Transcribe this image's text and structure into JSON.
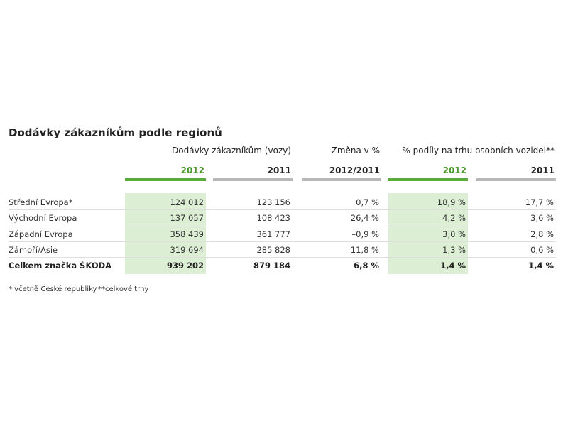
{
  "title": "Dodávky zákazníkům podle regionů",
  "table": {
    "group_headers": [
      "Dodávky zákazníkům (vozy)",
      "Změna v %",
      "% podíly na trhu osobních vozidel**"
    ],
    "columns": [
      "2012",
      "2011",
      "2012/2011",
      "2012",
      "2011"
    ],
    "rows": [
      [
        "Střední Evropa*",
        "124 012",
        "123 156",
        "0,7 %",
        "18,9 %",
        "17,7 %"
      ],
      [
        "Východní Evropa",
        "137 057",
        "108 423",
        "26,4 %",
        "4,2 %",
        "3,6 %"
      ],
      [
        "Západní Evropa",
        "358 439",
        "361 777",
        "–0,9 %",
        "3,0 %",
        "2,8 %"
      ],
      [
        "Zámoří/Asie",
        "319 694",
        "285 828",
        "11,8 %",
        "1,3 %",
        "0,6 %"
      ],
      [
        "Celkem značka ŠKODA",
        "939 202",
        "879 184",
        "6,8 %",
        "1,4 %",
        "1,4 %"
      ]
    ]
  },
  "footnotes": [
    "* včetně České republiky",
    "**celkové trhy"
  ]
}
